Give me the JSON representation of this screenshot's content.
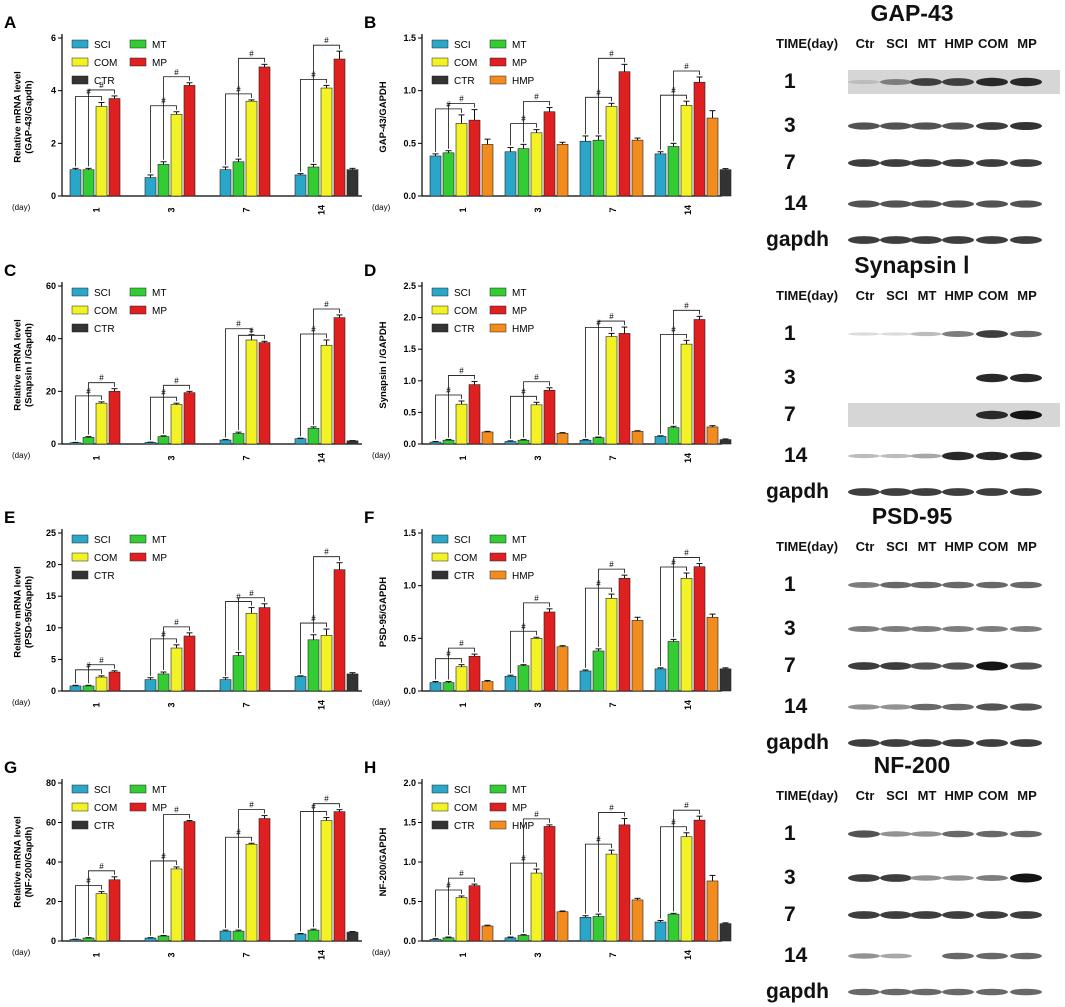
{
  "legend_labels": {
    "SCI": "SCI",
    "MT": "MT",
    "COM": "COM",
    "MP": "MP",
    "CTR": "CTR",
    "HMP": "HMP"
  },
  "day_unit": "(day)",
  "sig_mark": "#",
  "colors": {
    "SCI": "#2aa6c8",
    "MT": "#33cc33",
    "COM": "#f2f224",
    "MP": "#e02020",
    "CTR": "#333333",
    "HMP": "#f28c1e"
  },
  "chart_data": [
    {
      "panel": "A",
      "type": "bar",
      "ylabel": "Relative  mRNA level\n(GAP-43/Gapdh)",
      "ylim": [
        0,
        6
      ],
      "yticks": [
        0,
        2,
        4,
        6
      ],
      "legend": [
        "SCI",
        "MT",
        "COM",
        "MP",
        "CTR"
      ],
      "categories": [
        "1",
        "3",
        "7",
        "14"
      ],
      "series": [
        {
          "name": "SCI",
          "values": [
            1.0,
            0.7,
            1.0,
            0.8
          ],
          "err": [
            0.05,
            0.1,
            0.1,
            0.05
          ]
        },
        {
          "name": "MT",
          "values": [
            1.0,
            1.2,
            1.3,
            1.1
          ],
          "err": [
            0.05,
            0.1,
            0.1,
            0.1
          ]
        },
        {
          "name": "COM",
          "values": [
            3.4,
            3.1,
            3.6,
            4.1
          ],
          "err": [
            0.15,
            0.1,
            0.05,
            0.1
          ]
        },
        {
          "name": "MP",
          "values": [
            3.7,
            4.2,
            4.9,
            5.2
          ],
          "err": [
            0.1,
            0.1,
            0.1,
            0.3
          ]
        },
        {
          "name": "CTR",
          "values": [
            null,
            null,
            null,
            1.0
          ],
          "err": [
            0,
            0,
            0,
            0.05
          ]
        }
      ]
    },
    {
      "panel": "B",
      "type": "bar",
      "ylabel": "GAP-43/GAPDH",
      "ylim": [
        0,
        1.5
      ],
      "yticks": [
        0.0,
        0.5,
        1.0,
        1.5
      ],
      "legend": [
        "SCI",
        "MT",
        "COM",
        "MP",
        "CTR",
        "HMP"
      ],
      "categories": [
        "1",
        "3",
        "7",
        "14"
      ],
      "series": [
        {
          "name": "SCI",
          "values": [
            0.38,
            0.42,
            0.52,
            0.4
          ],
          "err": [
            0.02,
            0.04,
            0.05,
            0.02
          ]
        },
        {
          "name": "MT",
          "values": [
            0.41,
            0.45,
            0.53,
            0.47
          ],
          "err": [
            0.02,
            0.04,
            0.04,
            0.03
          ]
        },
        {
          "name": "COM",
          "values": [
            0.69,
            0.6,
            0.85,
            0.86
          ],
          "err": [
            0.08,
            0.03,
            0.03,
            0.04
          ]
        },
        {
          "name": "MP",
          "values": [
            0.72,
            0.8,
            1.18,
            1.08
          ],
          "err": [
            0.1,
            0.04,
            0.07,
            0.05
          ]
        },
        {
          "name": "HMP",
          "values": [
            0.49,
            0.49,
            0.53,
            0.74
          ],
          "err": [
            0.05,
            0.02,
            0.02,
            0.07
          ]
        },
        {
          "name": "CTR",
          "values": [
            null,
            null,
            null,
            0.25
          ],
          "err": [
            0,
            0,
            0,
            0.01
          ]
        }
      ]
    },
    {
      "panel": "C",
      "type": "bar",
      "ylabel": "Relative  mRNA level\n(Snapsin I /Gapdh)",
      "ylim": [
        0,
        60
      ],
      "yticks": [
        0,
        20,
        40,
        60
      ],
      "legend": [
        "SCI",
        "MT",
        "COM",
        "MP",
        "CTR"
      ],
      "categories": [
        "1",
        "3",
        "7",
        "14"
      ],
      "series": [
        {
          "name": "SCI",
          "values": [
            0.5,
            0.6,
            1.5,
            2.0
          ],
          "err": [
            0.1,
            0.1,
            0.2,
            0.2
          ]
        },
        {
          "name": "MT",
          "values": [
            2.5,
            2.8,
            4.0,
            6.0
          ],
          "err": [
            0.3,
            0.3,
            0.5,
            0.5
          ]
        },
        {
          "name": "COM",
          "values": [
            15.5,
            15.0,
            39.5,
            37.5
          ],
          "err": [
            0.5,
            0.5,
            2.0,
            2.0
          ]
        },
        {
          "name": "MP",
          "values": [
            20.0,
            19.5,
            38.5,
            48.0
          ],
          "err": [
            1.0,
            0.5,
            0.5,
            1.0
          ]
        },
        {
          "name": "CTR",
          "values": [
            null,
            null,
            null,
            1.2
          ],
          "err": [
            0,
            0,
            0,
            0.1
          ]
        }
      ]
    },
    {
      "panel": "D",
      "type": "bar",
      "ylabel": "Synapsin I /GAPDH",
      "ylim": [
        0,
        2.5
      ],
      "yticks": [
        0.0,
        0.5,
        1.0,
        1.5,
        2.0,
        2.5
      ],
      "legend": [
        "SCI",
        "MT",
        "COM",
        "MP",
        "CTR",
        "HMP"
      ],
      "categories": [
        "1",
        "3",
        "7",
        "14"
      ],
      "series": [
        {
          "name": "SCI",
          "values": [
            0.03,
            0.04,
            0.06,
            0.12
          ],
          "err": [
            0.01,
            0.01,
            0.01,
            0.01
          ]
        },
        {
          "name": "MT",
          "values": [
            0.06,
            0.06,
            0.1,
            0.26
          ],
          "err": [
            0.01,
            0.01,
            0.01,
            0.02
          ]
        },
        {
          "name": "COM",
          "values": [
            0.63,
            0.62,
            1.7,
            1.58
          ],
          "err": [
            0.05,
            0.04,
            0.05,
            0.06
          ]
        },
        {
          "name": "MP",
          "values": [
            0.94,
            0.85,
            1.75,
            1.97
          ],
          "err": [
            0.05,
            0.04,
            0.1,
            0.05
          ]
        },
        {
          "name": "HMP",
          "values": [
            0.19,
            0.17,
            0.2,
            0.27
          ],
          "err": [
            0.01,
            0.01,
            0.01,
            0.02
          ]
        },
        {
          "name": "CTR",
          "values": [
            null,
            null,
            null,
            0.07
          ],
          "err": [
            0,
            0,
            0,
            0.01
          ]
        }
      ]
    },
    {
      "panel": "E",
      "type": "bar",
      "ylabel": "Relative  mRNA level\n(PSD-95/Gapdh)",
      "ylim": [
        0,
        25
      ],
      "yticks": [
        0,
        5,
        10,
        15,
        20,
        25
      ],
      "legend": [
        "SCI",
        "MT",
        "COM",
        "MP",
        "CTR"
      ],
      "categories": [
        "1",
        "3",
        "7",
        "14"
      ],
      "series": [
        {
          "name": "SCI",
          "values": [
            0.8,
            1.8,
            1.8,
            2.3
          ],
          "err": [
            0.1,
            0.3,
            0.3,
            0.1
          ]
        },
        {
          "name": "MT",
          "values": [
            0.8,
            2.7,
            5.6,
            8.1
          ],
          "err": [
            0.1,
            0.3,
            0.5,
            0.8
          ]
        },
        {
          "name": "COM",
          "values": [
            2.2,
            6.8,
            12.3,
            8.8
          ],
          "err": [
            0.2,
            0.5,
            0.9,
            1.0
          ]
        },
        {
          "name": "MP",
          "values": [
            3.0,
            8.7,
            13.2,
            19.2
          ],
          "err": [
            0.2,
            0.5,
            0.6,
            1.1
          ]
        },
        {
          "name": "CTR",
          "values": [
            null,
            null,
            null,
            2.7
          ],
          "err": [
            0,
            0,
            0,
            0.2
          ]
        }
      ]
    },
    {
      "panel": "F",
      "type": "bar",
      "ylabel": "PSD-95/GAPDH",
      "ylim": [
        0,
        1.5
      ],
      "yticks": [
        0.0,
        0.5,
        1.0,
        1.5
      ],
      "legend": [
        "SCI",
        "MT",
        "COM",
        "MP",
        "CTR",
        "HMP"
      ],
      "categories": [
        "1",
        "3",
        "7",
        "14"
      ],
      "series": [
        {
          "name": "SCI",
          "values": [
            0.08,
            0.14,
            0.19,
            0.21
          ],
          "err": [
            0.01,
            0.01,
            0.01,
            0.01
          ]
        },
        {
          "name": "MT",
          "values": [
            0.08,
            0.24,
            0.38,
            0.47
          ],
          "err": [
            0.01,
            0.01,
            0.02,
            0.02
          ]
        },
        {
          "name": "COM",
          "values": [
            0.23,
            0.5,
            0.88,
            1.07
          ],
          "err": [
            0.02,
            0.01,
            0.04,
            0.05
          ]
        },
        {
          "name": "MP",
          "values": [
            0.33,
            0.75,
            1.07,
            1.18
          ],
          "err": [
            0.02,
            0.03,
            0.03,
            0.03
          ]
        },
        {
          "name": "HMP",
          "values": [
            0.09,
            0.42,
            0.67,
            0.7
          ],
          "err": [
            0.01,
            0.01,
            0.03,
            0.03
          ]
        },
        {
          "name": "CTR",
          "values": [
            null,
            null,
            null,
            0.21
          ],
          "err": [
            0,
            0,
            0,
            0.01
          ]
        }
      ]
    },
    {
      "panel": "G",
      "type": "bar",
      "ylabel": "Relative  mRNA level\n(NF-200/Gapdh)",
      "ylim": [
        0,
        80
      ],
      "yticks": [
        0,
        20,
        40,
        60,
        80
      ],
      "legend": [
        "SCI",
        "MT",
        "COM",
        "MP",
        "CTR"
      ],
      "categories": [
        "1",
        "3",
        "7",
        "14"
      ],
      "series": [
        {
          "name": "SCI",
          "values": [
            0.8,
            1.5,
            5.0,
            3.5
          ],
          "err": [
            0.1,
            0.2,
            0.5,
            0.3
          ]
        },
        {
          "name": "MT",
          "values": [
            1.5,
            2.5,
            5.0,
            5.5
          ],
          "err": [
            0.2,
            0.3,
            0.5,
            0.5
          ]
        },
        {
          "name": "COM",
          "values": [
            24.0,
            36.5,
            49.0,
            61.0
          ],
          "err": [
            1.0,
            1.0,
            0.5,
            1.5
          ]
        },
        {
          "name": "MP",
          "values": [
            31.0,
            60.5,
            62.0,
            65.5
          ],
          "err": [
            1.5,
            0.5,
            1.5,
            1.0
          ]
        },
        {
          "name": "CTR",
          "values": [
            null,
            null,
            null,
            4.5
          ],
          "err": [
            0,
            0,
            0,
            0.3
          ]
        }
      ]
    },
    {
      "panel": "H",
      "type": "bar",
      "ylabel": "NF-200/GAPDH",
      "ylim": [
        0,
        2.0
      ],
      "yticks": [
        0.0,
        0.5,
        1.0,
        1.5,
        2.0
      ],
      "legend": [
        "SCI",
        "MT",
        "COM",
        "MP",
        "CTR",
        "HMP"
      ],
      "categories": [
        "1",
        "3",
        "7",
        "14"
      ],
      "series": [
        {
          "name": "SCI",
          "values": [
            0.02,
            0.04,
            0.3,
            0.24
          ],
          "err": [
            0.01,
            0.01,
            0.02,
            0.02
          ]
        },
        {
          "name": "MT",
          "values": [
            0.04,
            0.07,
            0.31,
            0.34
          ],
          "err": [
            0.01,
            0.01,
            0.03,
            0.01
          ]
        },
        {
          "name": "COM",
          "values": [
            0.55,
            0.86,
            1.1,
            1.32
          ],
          "err": [
            0.02,
            0.05,
            0.05,
            0.05
          ]
        },
        {
          "name": "MP",
          "values": [
            0.7,
            1.45,
            1.47,
            1.53
          ],
          "err": [
            0.02,
            0.02,
            0.08,
            0.05
          ]
        },
        {
          "name": "HMP",
          "values": [
            0.19,
            0.37,
            0.52,
            0.76
          ],
          "err": [
            0.01,
            0.01,
            0.02,
            0.07
          ]
        },
        {
          "name": "CTR",
          "values": [
            null,
            null,
            null,
            0.22
          ],
          "err": [
            0,
            0,
            0,
            0.01
          ]
        }
      ]
    }
  ],
  "blots": [
    {
      "title": "GAP-43",
      "time_label": "TIME(day)",
      "lanes": [
        "Ctr",
        "SCI",
        "MT",
        "HMP",
        "COM",
        "MP"
      ],
      "rows": [
        "1",
        "3",
        "7",
        "14",
        "gapdh"
      ]
    },
    {
      "title": "Synapsin Ⅰ",
      "time_label": "TIME(day)",
      "lanes": [
        "Ctr",
        "SCI",
        "MT",
        "HMP",
        "COM",
        "MP"
      ],
      "rows": [
        "1",
        "3",
        "7",
        "14",
        "gapdh"
      ]
    },
    {
      "title": "PSD-95",
      "time_label": "TIME(day)",
      "lanes": [
        "Ctr",
        "SCI",
        "MT",
        "HMP",
        "COM",
        "MP"
      ],
      "rows": [
        "1",
        "3",
        "7",
        "14",
        "gapdh"
      ]
    },
    {
      "title": "NF-200",
      "time_label": "TIME(day)",
      "lanes": [
        "Ctr",
        "SCI",
        "MT",
        "HMP",
        "COM",
        "MP"
      ],
      "rows": [
        "1",
        "3",
        "7",
        "14",
        "gapdh"
      ]
    }
  ]
}
